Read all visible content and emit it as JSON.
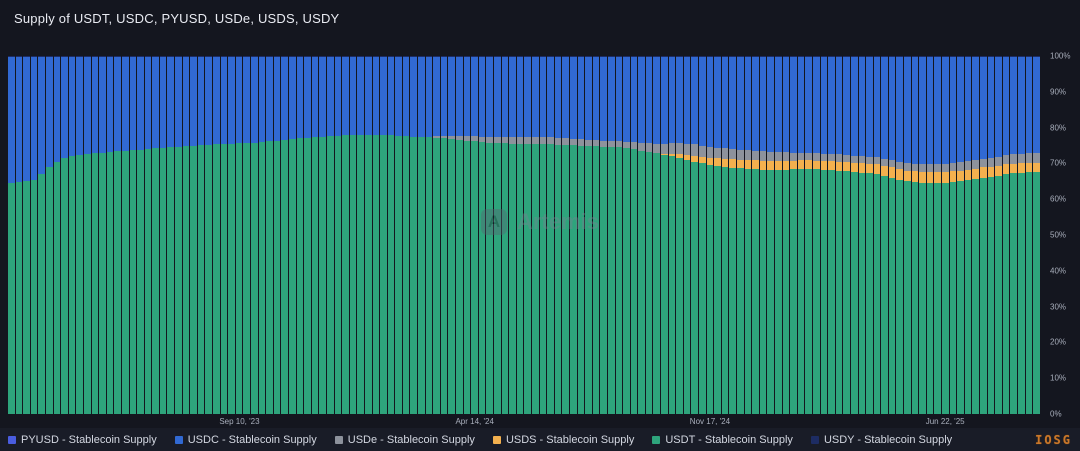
{
  "title": "Supply of USDT, USDC, PYUSD, USDe, USDS, USDY",
  "watermark": {
    "brand": "Artemis",
    "logo_letter": "A"
  },
  "corner_mark": "IOSG",
  "colors": {
    "usdt": "#2ea47c",
    "usdc": "#3169d3",
    "usde": "#8d929c",
    "usds": "#f3b04e",
    "pyusd": "#4a5de0",
    "usdy": "#1d2c63",
    "background": "#14161f",
    "legend_bg": "#191c27",
    "axis_text": "#a9afbc"
  },
  "legend": [
    {
      "label": "PYUSD - Stablecoin Supply",
      "color_key": "pyusd"
    },
    {
      "label": "USDC - Stablecoin Supply",
      "color_key": "usdc"
    },
    {
      "label": "USDe - Stablecoin Supply",
      "color_key": "usde"
    },
    {
      "label": "USDS - Stablecoin Supply",
      "color_key": "usds"
    },
    {
      "label": "USDT - Stablecoin Supply",
      "color_key": "usdt"
    },
    {
      "label": "USDY - Stablecoin Supply",
      "color_key": "usdy"
    }
  ],
  "chart_data": {
    "type": "bar",
    "stacked_percent": true,
    "n_bars": 136,
    "frequency": "weekly",
    "ylim": [
      0,
      100
    ],
    "unit": "%",
    "y_ticks": [
      "100%",
      "90%",
      "80%",
      "70%",
      "60%",
      "50%",
      "40%",
      "30%",
      "20%",
      "10%",
      "0%"
    ],
    "x_ticks": [
      {
        "label": "Sep 10, '23",
        "bar_index": 30
      },
      {
        "label": "Apr 14, '24",
        "bar_index": 61
      },
      {
        "label": "Nov 17, '24",
        "bar_index": 92
      },
      {
        "label": "Jun 22, '25",
        "bar_index": 123
      }
    ],
    "stack_order_bottom_to_top": [
      "USDT",
      "USDS",
      "USDe",
      "USDC",
      "PYUSD",
      "USDY"
    ],
    "series": {
      "USDT": {
        "color_key": "usdt",
        "values": [
          64.5,
          64.8,
          65.0,
          65.5,
          67.0,
          69.0,
          70.5,
          71.5,
          72.0,
          72.3,
          72.5,
          72.8,
          73.0,
          73.2,
          73.4,
          73.5,
          73.7,
          73.8,
          74.0,
          74.2,
          74.4,
          74.5,
          74.6,
          74.8,
          75.0,
          75.1,
          75.2,
          75.3,
          75.4,
          75.5,
          75.6,
          75.7,
          75.8,
          76.0,
          76.2,
          76.4,
          76.6,
          76.8,
          77.0,
          77.2,
          77.4,
          77.5,
          77.6,
          77.7,
          77.8,
          77.8,
          77.9,
          78.0,
          77.9,
          77.8,
          77.8,
          77.7,
          77.6,
          77.5,
          77.4,
          77.3,
          77.2,
          77.0,
          76.8,
          76.6,
          76.4,
          76.2,
          76.0,
          75.8,
          75.7,
          75.6,
          75.5,
          75.5,
          75.4,
          75.4,
          75.3,
          75.3,
          75.2,
          75.2,
          75.1,
          75.0,
          74.9,
          74.8,
          74.7,
          74.6,
          74.5,
          74.3,
          74.0,
          73.6,
          73.2,
          72.8,
          72.4,
          72.0,
          71.5,
          71.0,
          70.5,
          70.0,
          69.6,
          69.3,
          69.0,
          68.8,
          68.6,
          68.5,
          68.4,
          68.3,
          68.2,
          68.2,
          68.3,
          68.4,
          68.5,
          68.5,
          68.4,
          68.3,
          68.2,
          68.0,
          67.8,
          67.6,
          67.4,
          67.2,
          67.0,
          66.5,
          66.0,
          65.5,
          65.0,
          64.8,
          64.6,
          64.5,
          64.5,
          64.6,
          64.8,
          65.0,
          65.3,
          65.6,
          66.0,
          66.3,
          66.6,
          67.0,
          67.2,
          67.4,
          67.5,
          67.6
        ]
      },
      "USDS": {
        "color_key": "usds",
        "values": [
          0,
          0,
          0,
          0,
          0,
          0,
          0,
          0,
          0,
          0,
          0,
          0,
          0,
          0,
          0,
          0,
          0,
          0,
          0,
          0,
          0,
          0,
          0,
          0,
          0,
          0,
          0,
          0,
          0,
          0,
          0,
          0,
          0,
          0,
          0,
          0,
          0,
          0,
          0,
          0,
          0,
          0,
          0,
          0,
          0,
          0,
          0,
          0,
          0,
          0,
          0,
          0,
          0,
          0,
          0,
          0,
          0,
          0,
          0,
          0,
          0,
          0,
          0,
          0,
          0,
          0,
          0,
          0,
          0,
          0,
          0,
          0,
          0,
          0,
          0,
          0,
          0,
          0,
          0,
          0,
          0,
          0,
          0,
          0,
          0,
          0,
          0.3,
          0.6,
          1.0,
          1.3,
          1.6,
          1.8,
          2.0,
          2.1,
          2.2,
          2.3,
          2.4,
          2.4,
          2.5,
          2.5,
          2.5,
          2.5,
          2.5,
          2.4,
          2.4,
          2.4,
          2.4,
          2.4,
          2.4,
          2.5,
          2.5,
          2.5,
          2.6,
          2.6,
          2.7,
          2.8,
          2.9,
          3.0,
          3.0,
          3.1,
          3.1,
          3.2,
          3.2,
          3.1,
          3.1,
          3.0,
          3.0,
          2.9,
          2.9,
          2.8,
          2.8,
          2.7,
          2.7,
          2.6,
          2.6,
          2.6
        ]
      },
      "USDe": {
        "color_key": "usde",
        "values": [
          0,
          0,
          0,
          0,
          0,
          0,
          0,
          0,
          0,
          0,
          0,
          0,
          0,
          0,
          0,
          0,
          0,
          0,
          0,
          0,
          0,
          0,
          0,
          0,
          0,
          0,
          0,
          0,
          0,
          0,
          0,
          0,
          0,
          0,
          0,
          0,
          0,
          0,
          0,
          0,
          0,
          0,
          0,
          0,
          0,
          0,
          0,
          0,
          0,
          0,
          0,
          0,
          0,
          0,
          0,
          0.2,
          0.4,
          0.6,
          0.8,
          1.0,
          1.2,
          1.4,
          1.5,
          1.6,
          1.7,
          1.8,
          1.8,
          1.9,
          1.9,
          2.0,
          2.0,
          2.0,
          1.9,
          1.9,
          1.8,
          1.8,
          1.7,
          1.7,
          1.6,
          1.6,
          1.7,
          1.8,
          2.0,
          2.2,
          2.4,
          2.6,
          2.8,
          3.0,
          3.1,
          3.2,
          3.2,
          3.2,
          3.1,
          3.0,
          3.0,
          2.9,
          2.8,
          2.8,
          2.7,
          2.6,
          2.5,
          2.4,
          2.3,
          2.2,
          2.1,
          2.0,
          2.0,
          2.0,
          2.0,
          2.0,
          2.0,
          2.0,
          2.0,
          2.0,
          2.0,
          2.0,
          2.0,
          2.0,
          2.0,
          2.0,
          2.0,
          2.0,
          2.1,
          2.2,
          2.2,
          2.3,
          2.3,
          2.4,
          2.4,
          2.5,
          2.5,
          2.6,
          2.6,
          2.7,
          2.7,
          2.8
        ]
      },
      "USDC": {
        "color_key": "usdc",
        "derived": "remainder_to_100"
      },
      "PYUSD": {
        "color_key": "pyusd",
        "constant": 0.25
      },
      "USDY": {
        "color_key": "usdy",
        "constant": 0.15
      }
    }
  }
}
